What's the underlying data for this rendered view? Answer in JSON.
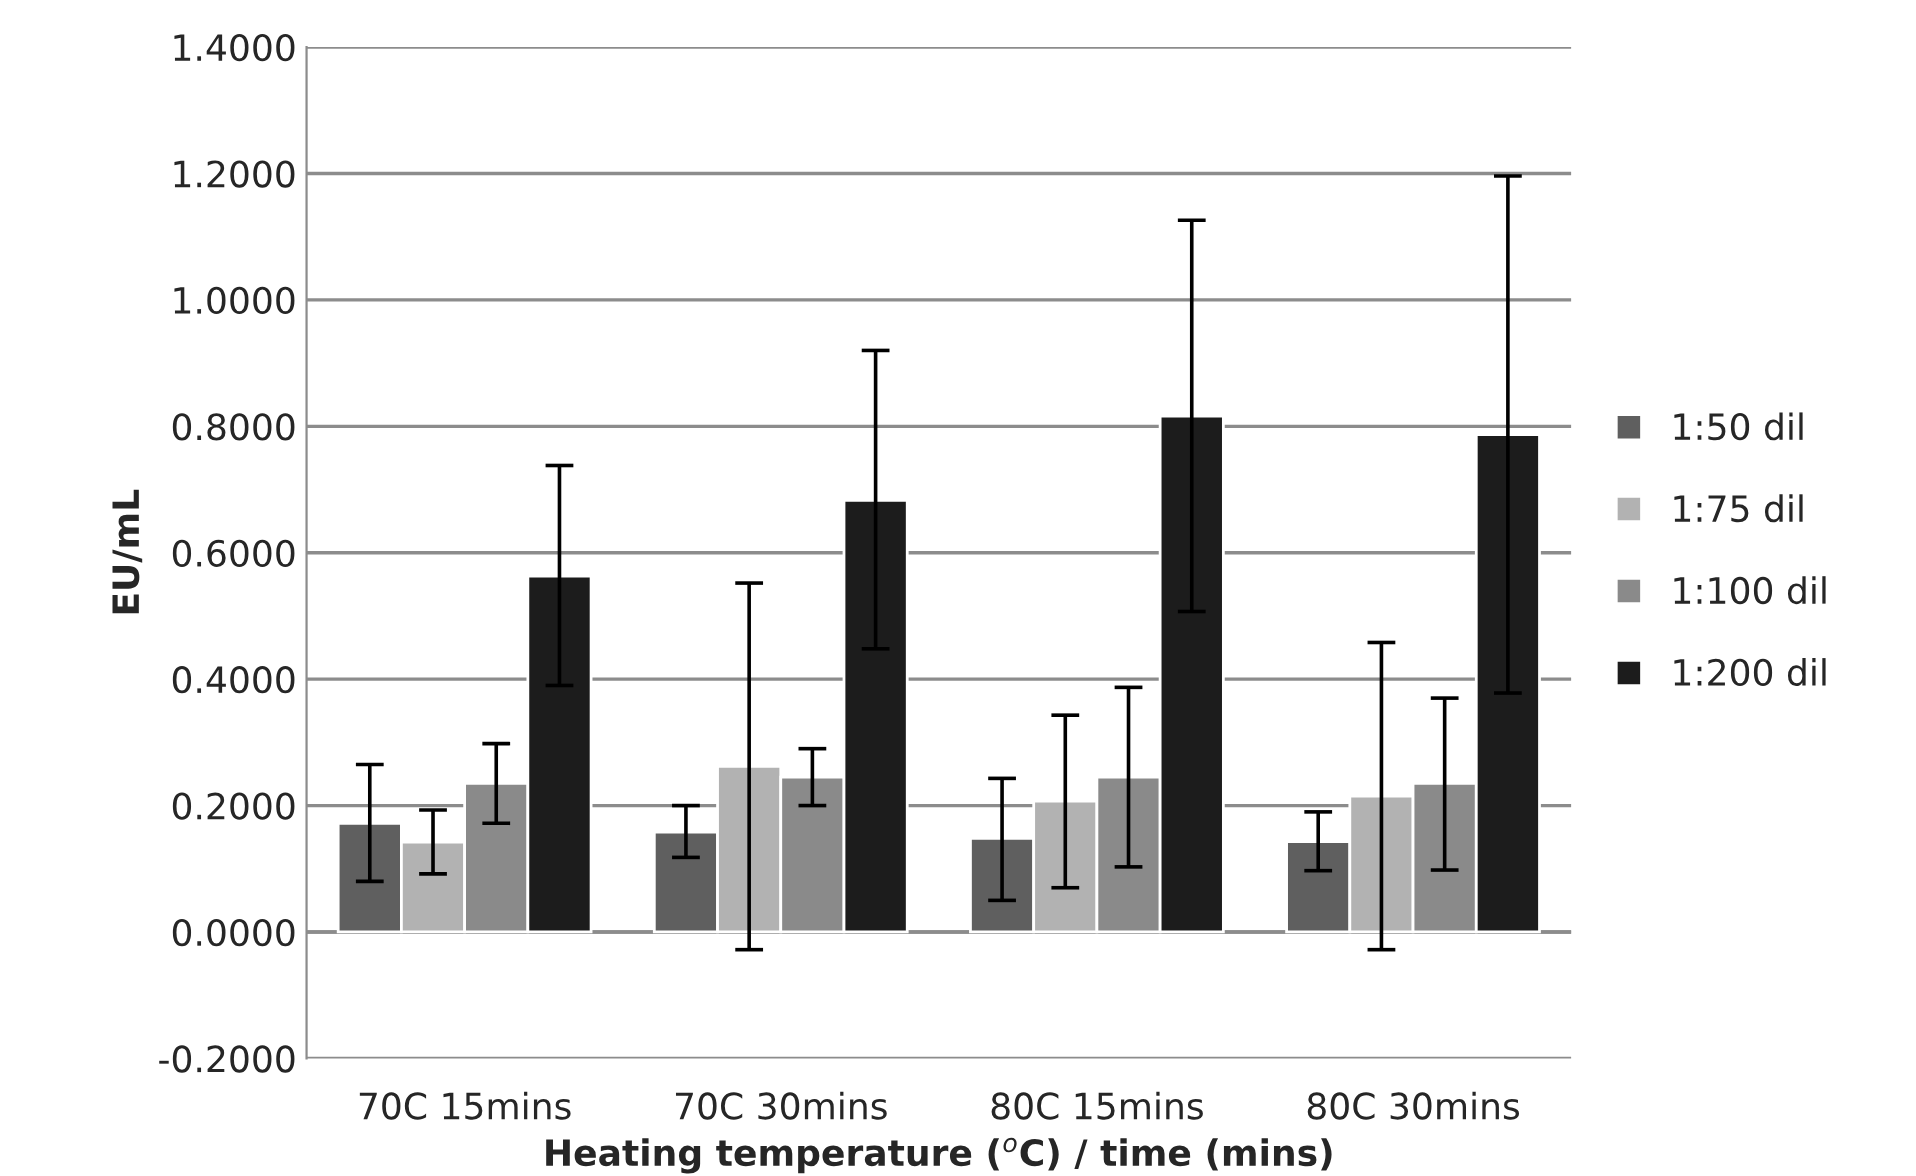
{
  "chart_data": {
    "type": "bar",
    "xlabel": "Heating temperature ($^{o}$C) / time (mins)",
    "ylabel": "EU/mL",
    "categories": [
      "70C 15mins",
      "70C 30mins",
      "80C 15mins",
      "80C 30mins"
    ],
    "series": [
      {
        "name": "1:50 dil",
        "color": "#5f5f5f",
        "values": [
          0.172,
          0.158,
          0.148,
          0.143
        ],
        "errors": [
          [
            0.08,
            0.265
          ],
          [
            0.118,
            0.2
          ],
          [
            0.05,
            0.243
          ],
          [
            0.097,
            0.19
          ]
        ]
      },
      {
        "name": "1:75 dil",
        "color": "#b2b2b2",
        "values": [
          0.142,
          0.262,
          0.207,
          0.215
        ],
        "errors": [
          [
            0.092,
            0.193
          ],
          [
            -0.028,
            0.552
          ],
          [
            0.07,
            0.343
          ],
          [
            -0.028,
            0.458
          ]
        ]
      },
      {
        "name": "1:100 dil",
        "color": "#8a8a8a",
        "values": [
          0.235,
          0.245,
          0.245,
          0.235
        ],
        "errors": [
          [
            0.172,
            0.298
          ],
          [
            0.2,
            0.29
          ],
          [
            0.103,
            0.387
          ],
          [
            0.098,
            0.37
          ]
        ]
      },
      {
        "name": "1:200 dil",
        "color": "#1c1c1c",
        "values": [
          0.563,
          0.683,
          0.816,
          0.787
        ],
        "errors": [
          [
            0.39,
            0.738
          ],
          [
            0.448,
            0.92
          ],
          [
            0.507,
            1.126
          ],
          [
            0.378,
            1.196
          ]
        ]
      }
    ],
    "ylim": [
      -0.2,
      1.4
    ],
    "yticks": [
      {
        "value": -0.2,
        "label": "-0.2000"
      },
      {
        "value": 0,
        "label": "0.0000"
      },
      {
        "value": 0.2,
        "label": "0.2000"
      },
      {
        "value": 0.4,
        "label": "0.4000"
      },
      {
        "value": 0.6,
        "label": "0.6000"
      },
      {
        "value": 0.8,
        "label": "0.8000"
      },
      {
        "value": 1.0,
        "label": "1.0000"
      },
      {
        "value": 1.2,
        "label": "1.2000"
      },
      {
        "value": 1.4,
        "label": "1.4000"
      }
    ],
    "grid": "y",
    "legend": "right"
  }
}
